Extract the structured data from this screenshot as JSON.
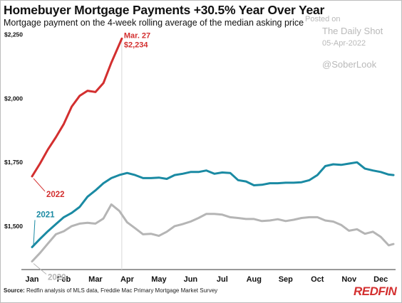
{
  "header": {
    "title": "Homebuyer Mortgage Payments +30.5% Year Over Year",
    "subtitle": "Mortgage payment on the 4-week rolling average of the median asking price"
  },
  "watermark": {
    "posted": "Posted on",
    "source": "The Daily Shot",
    "date": "05-Apr-2022",
    "handle": "@SoberLook"
  },
  "footer": {
    "source_label": "Source:",
    "source_text": "Redfin analysis of MLS data, Freddie Mac Primary Mortgage Market Survey",
    "logo": "REDFIN"
  },
  "chart_data": {
    "type": "line",
    "x_axis": {
      "range_months": [
        0,
        11.4
      ],
      "tick_labels": [
        "Jan",
        "Feb",
        "Mar",
        "Apr",
        "May",
        "Jun",
        "Jul",
        "Aug",
        "Sep",
        "Oct",
        "Nov",
        "Dec"
      ]
    },
    "y_axis": {
      "range": [
        1330,
        2260
      ],
      "ticks": [
        1500,
        1750,
        2000,
        2250
      ],
      "tick_labels": [
        "$1,500",
        "$1,750",
        "$2,000",
        "$2,250"
      ]
    },
    "grid": false,
    "series": [
      {
        "name": "2020",
        "color": "#b5b5b5",
        "x": [
          0,
          0.25,
          0.5,
          0.75,
          1,
          1.25,
          1.5,
          1.75,
          2,
          2.25,
          2.5,
          2.75,
          3,
          3.25,
          3.5,
          3.75,
          4,
          4.25,
          4.5,
          4.75,
          5,
          5.25,
          5.5,
          5.75,
          6,
          6.25,
          6.5,
          6.75,
          7,
          7.25,
          7.5,
          7.75,
          8,
          8.25,
          8.5,
          8.75,
          9,
          9.25,
          9.5,
          9.75,
          10,
          10.25,
          10.5,
          10.75,
          11,
          11.25,
          11.4
        ],
        "values": [
          1362,
          1395,
          1432,
          1468,
          1480,
          1500,
          1510,
          1513,
          1510,
          1530,
          1585,
          1560,
          1515,
          1492,
          1468,
          1470,
          1462,
          1478,
          1500,
          1508,
          1518,
          1532,
          1548,
          1548,
          1545,
          1535,
          1532,
          1528,
          1528,
          1520,
          1522,
          1527,
          1520,
          1525,
          1532,
          1535,
          1535,
          1522,
          1518,
          1505,
          1482,
          1488,
          1470,
          1478,
          1458,
          1425,
          1430
        ]
      },
      {
        "name": "2021",
        "color": "#1a8aa3",
        "x": [
          0,
          0.25,
          0.5,
          0.75,
          1,
          1.25,
          1.5,
          1.75,
          2,
          2.25,
          2.5,
          2.75,
          3,
          3.25,
          3.5,
          3.75,
          4,
          4.25,
          4.5,
          4.75,
          5,
          5.25,
          5.5,
          5.75,
          6,
          6.25,
          6.5,
          6.75,
          7,
          7.25,
          7.5,
          7.75,
          8,
          8.25,
          8.5,
          8.75,
          9,
          9.25,
          9.5,
          9.75,
          10,
          10.25,
          10.5,
          10.75,
          11,
          11.25,
          11.4
        ],
        "values": [
          1418,
          1450,
          1480,
          1508,
          1535,
          1552,
          1575,
          1615,
          1640,
          1668,
          1688,
          1700,
          1708,
          1700,
          1688,
          1688,
          1690,
          1685,
          1700,
          1705,
          1712,
          1712,
          1718,
          1705,
          1710,
          1708,
          1680,
          1675,
          1660,
          1662,
          1668,
          1668,
          1670,
          1670,
          1672,
          1680,
          1700,
          1735,
          1742,
          1740,
          1745,
          1750,
          1725,
          1718,
          1712,
          1702,
          1700
        ]
      },
      {
        "name": "2022",
        "color": "#d32f2f",
        "x": [
          0,
          0.25,
          0.5,
          0.75,
          1,
          1.25,
          1.5,
          1.75,
          2,
          2.25,
          2.5,
          2.83
        ],
        "values": [
          1695,
          1745,
          1800,
          1848,
          1900,
          1968,
          2010,
          2030,
          2025,
          2060,
          2140,
          2234
        ]
      }
    ],
    "annotations": [
      {
        "label_date": "Mar. 27",
        "label_value": "$2,234",
        "x": 2.83,
        "value": 2234,
        "vertical_line": true
      }
    ]
  }
}
